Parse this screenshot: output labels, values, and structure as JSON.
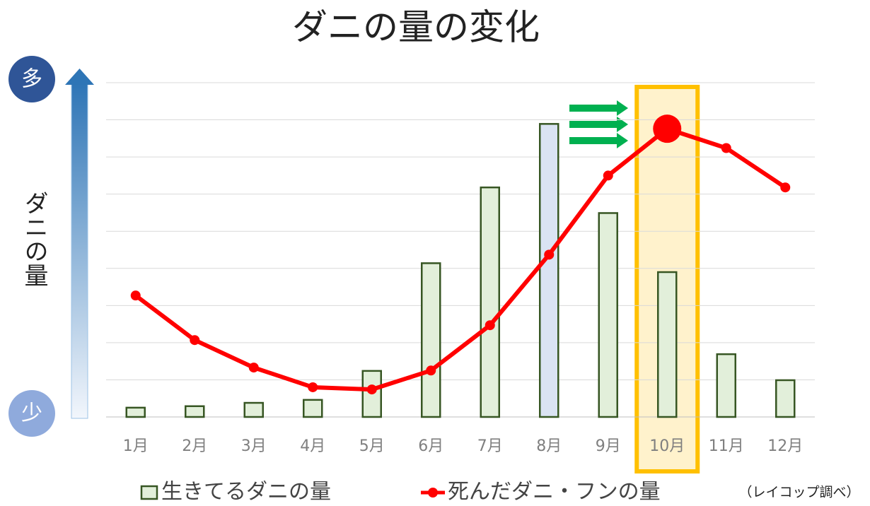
{
  "chart_data": {
    "type": "bar_line",
    "title": "ダニの量の変化",
    "y_label": "ダニの量",
    "y_top_label": "多",
    "y_bottom_label": "少",
    "note": "（レイコップ調べ）",
    "categories": [
      "1月",
      "2月",
      "3月",
      "4月",
      "5月",
      "6月",
      "7月",
      "8月",
      "9月",
      "10月",
      "11月",
      "12月"
    ],
    "series": [
      {
        "name": "生きてるダニの量",
        "type": "bar",
        "color": "#e2efda",
        "edge_color": "#375623",
        "colors": [
          "#e2efda",
          "#e2efda",
          "#e2efda",
          "#e2efda",
          "#e2efda",
          "#e2efda",
          "#e2efda",
          "#dae3f3",
          "#e2efda",
          "#e2efda",
          "#e2efda",
          "#e2efda"
        ],
        "values": [
          0.25,
          0.29,
          0.38,
          0.46,
          1.24,
          4.14,
          6.18,
          7.89,
          5.49,
          3.9,
          1.69,
          0.99
        ]
      },
      {
        "name": "死んだダニ・フンの量",
        "type": "line",
        "color": "#ff0000",
        "values": [
          3.27,
          2.07,
          1.33,
          0.8,
          0.74,
          1.25,
          2.47,
          4.37,
          6.5,
          7.76,
          7.24,
          6.18
        ]
      }
    ],
    "highlight": "10月",
    "ylim": [
      0,
      9
    ],
    "yticks": [
      0,
      1,
      2,
      3,
      4,
      5,
      6,
      7,
      8,
      9
    ],
    "grid": true
  }
}
